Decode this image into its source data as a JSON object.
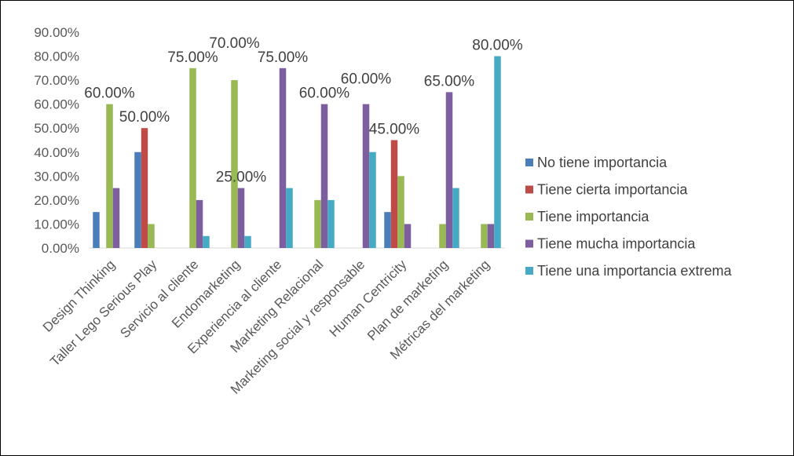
{
  "chart_data": {
    "type": "bar",
    "title": "",
    "xlabel": "",
    "ylabel": "",
    "ylim": [
      0,
      0.9
    ],
    "y_ticks": [
      "0.00%",
      "10.00%",
      "20.00%",
      "30.00%",
      "40.00%",
      "50.00%",
      "60.00%",
      "70.00%",
      "80.00%",
      "90.00%"
    ],
    "grid": false,
    "legend_position": "right",
    "categories": [
      "Design Thinking",
      "Taller Lego Serious Play",
      "Servicio al cliente",
      "Endomarketing",
      "Experiencia al cliente",
      "Marketing Relacional",
      "Marketing social y responsable",
      "Human Centricity",
      "Plan de marketing",
      "Métricas del marketing"
    ],
    "series": [
      {
        "name": "No tiene importancia",
        "color": "#4a7ebb",
        "values": [
          0.15,
          0.4,
          0,
          0,
          0,
          0,
          0,
          0.15,
          0,
          0
        ]
      },
      {
        "name": "Tiene cierta importancia",
        "color": "#be4b48",
        "values": [
          0,
          0.5,
          0,
          0,
          0,
          0,
          0,
          0.45,
          0,
          0
        ]
      },
      {
        "name": "Tiene importancia",
        "color": "#98b954",
        "values": [
          0.6,
          0.1,
          0.75,
          0.7,
          0,
          0.2,
          0,
          0.3,
          0.1,
          0.1
        ]
      },
      {
        "name": "Tiene mucha importancia",
        "color": "#7d5fa0",
        "values": [
          0.25,
          0,
          0.2,
          0.25,
          0.75,
          0.6,
          0.6,
          0.1,
          0.65,
          0.1
        ]
      },
      {
        "name": "Tiene una importancia extrema",
        "color": "#46aac5",
        "values": [
          0,
          0,
          0.05,
          0.05,
          0.25,
          0.2,
          0.4,
          0,
          0.25,
          0.8
        ]
      }
    ],
    "data_labels": [
      {
        "text": "60.00%",
        "category": 0,
        "series": 2
      },
      {
        "text": "50.00%",
        "category": 1,
        "series": 1
      },
      {
        "text": "75.00%",
        "category": 2,
        "series": 2
      },
      {
        "text": "70.00%",
        "category": 3,
        "series": 2
      },
      {
        "text": "25.00%",
        "category": 3,
        "series": 3
      },
      {
        "text": "75.00%",
        "category": 4,
        "series": 3
      },
      {
        "text": "60.00%",
        "category": 5,
        "series": 3
      },
      {
        "text": "60.00%",
        "category": 6,
        "series": 3
      },
      {
        "text": "45.00%",
        "category": 7,
        "series": 1
      },
      {
        "text": "65.00%",
        "category": 8,
        "series": 3
      },
      {
        "text": "80.00%",
        "category": 9,
        "series": 4
      }
    ]
  }
}
